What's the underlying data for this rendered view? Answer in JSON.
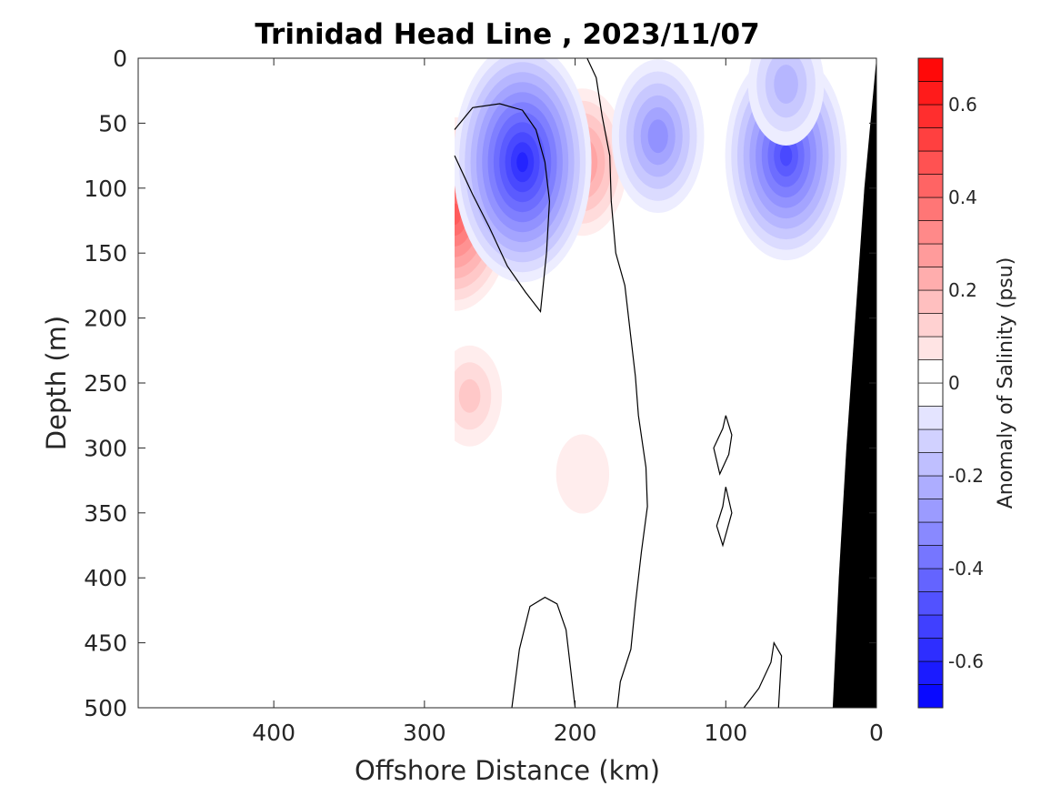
{
  "chart_data": {
    "type": "heatmap",
    "title": "Trinidad Head Line , 2023/11/07",
    "xlabel": "Offshore Distance (km)",
    "ylabel": "Depth (m)",
    "xlim": [
      490,
      0
    ],
    "ylim": [
      0,
      500
    ],
    "x_reversed": true,
    "y_reversed": true,
    "xticks": [
      400,
      300,
      200,
      100,
      0
    ],
    "yticks": [
      0,
      50,
      100,
      150,
      200,
      250,
      300,
      350,
      400,
      450,
      500
    ],
    "colorbar": {
      "label": "Anomaly of Salinity (psu)",
      "range": [
        -0.7,
        0.7
      ],
      "step": 0.05,
      "ticks": [
        -0.6,
        -0.4,
        -0.2,
        0,
        0.2,
        0.4,
        0.6
      ],
      "negative_color": "#0000ff",
      "zero_color": "#ffffff",
      "positive_color": "#ff0000"
    },
    "data_extent_x": [
      0,
      280
    ],
    "zero_contour_color": "#000000",
    "bathymetry_color": "#000000",
    "features": [
      {
        "label": "salty core",
        "x": 280,
        "depth": 120,
        "anomaly": 0.45
      },
      {
        "label": "salty core",
        "x": 270,
        "depth": 260,
        "anomaly": 0.15
      },
      {
        "label": "salty core",
        "x": 195,
        "depth": 80,
        "anomaly": 0.3
      },
      {
        "label": "salty core",
        "x": 195,
        "depth": 320,
        "anomaly": 0.08
      },
      {
        "label": "fresh core",
        "x": 235,
        "depth": 80,
        "anomaly": -0.6
      },
      {
        "label": "fresh core",
        "x": 145,
        "depth": 60,
        "anomaly": -0.32
      },
      {
        "label": "fresh core",
        "x": 60,
        "depth": 75,
        "anomaly": -0.5
      },
      {
        "label": "fresh core",
        "x": 60,
        "depth": 20,
        "anomaly": -0.22
      }
    ]
  }
}
